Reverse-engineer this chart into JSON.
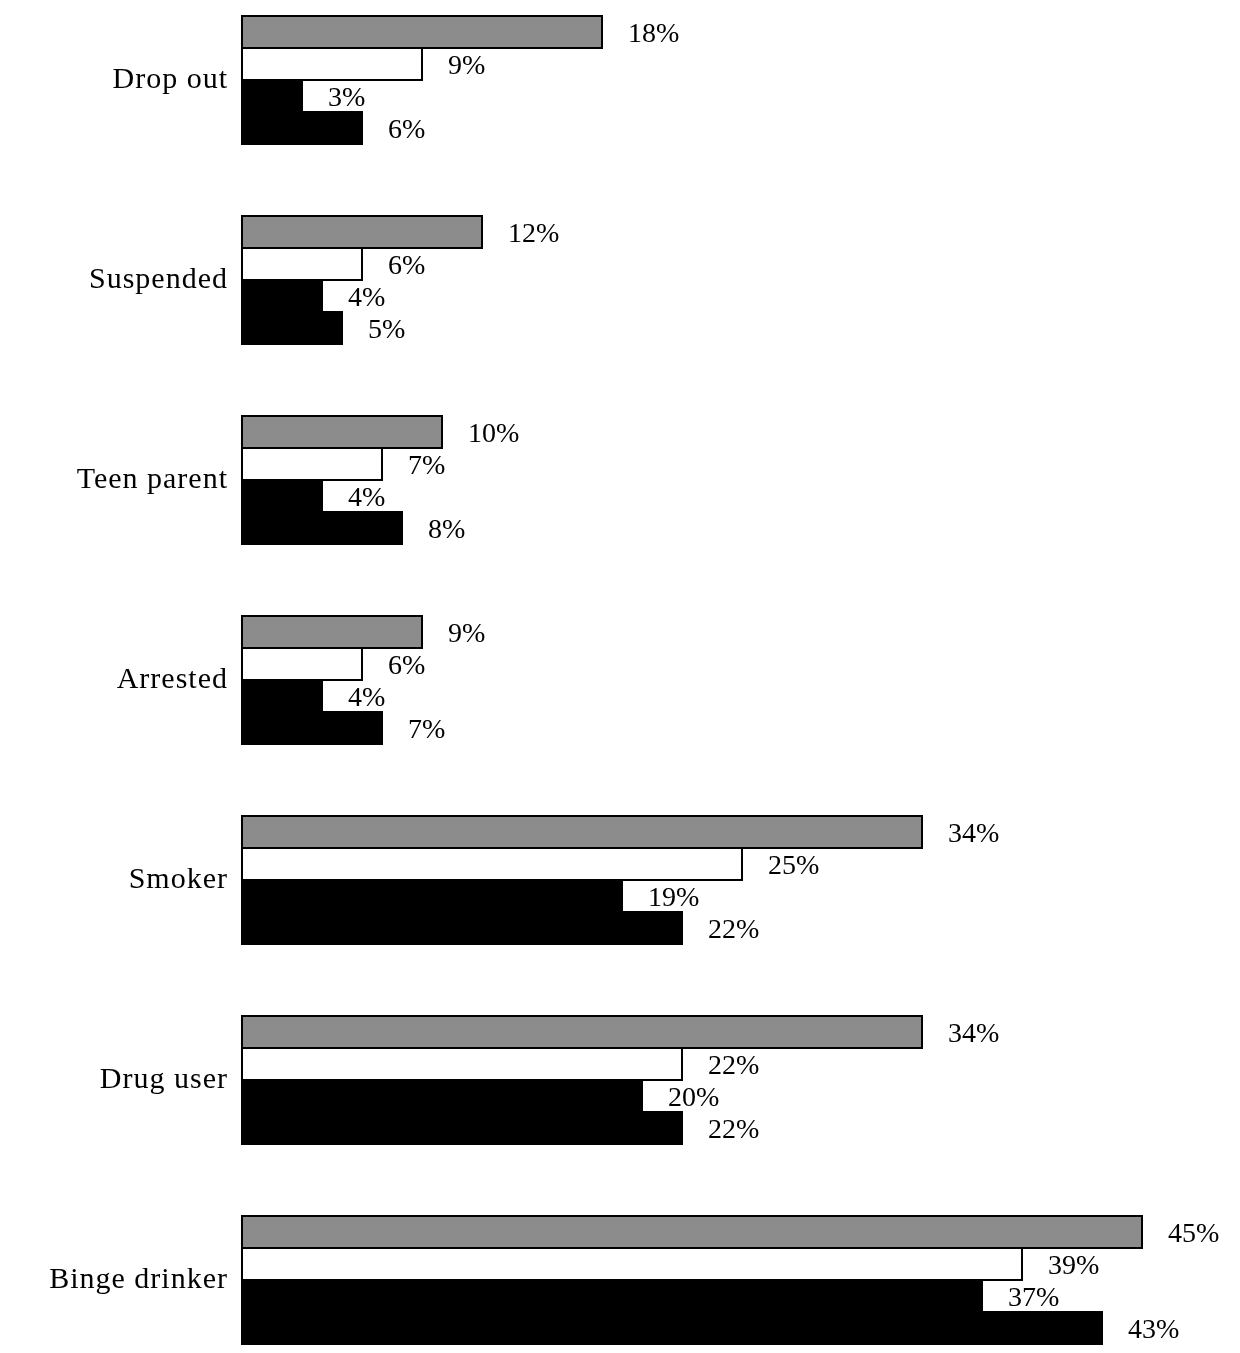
{
  "chart_data": {
    "type": "bar",
    "orientation": "horizontal",
    "categories": [
      "Drop out",
      "Suspended",
      "Teen parent",
      "Arrested",
      "Smoker",
      "Drug user",
      "Binge drinker"
    ],
    "series": [
      {
        "color": "#8c8c8c",
        "values": [
          18,
          12,
          10,
          9,
          34,
          34,
          45
        ],
        "value_labels": [
          "18%",
          "12%",
          "10%",
          "9%",
          "34%",
          "34%",
          "45%"
        ]
      },
      {
        "color": "#ffffff",
        "values": [
          9,
          6,
          7,
          6,
          25,
          22,
          39
        ],
        "value_labels": [
          "9%",
          "6%",
          "7%",
          "6%",
          "25%",
          "22%",
          "39%"
        ]
      },
      {
        "color": "#000000",
        "values": [
          3,
          4,
          4,
          4,
          19,
          20,
          37
        ],
        "value_labels": [
          "3%",
          "4%",
          "4%",
          "4%",
          "19%",
          "20%",
          "37%"
        ]
      },
      {
        "color": "#000000",
        "values": [
          6,
          5,
          8,
          7,
          22,
          22,
          43
        ],
        "value_labels": [
          "6%",
          "5%",
          "8%",
          "7%",
          "22%",
          "22%",
          "43%"
        ]
      }
    ]
  }
}
